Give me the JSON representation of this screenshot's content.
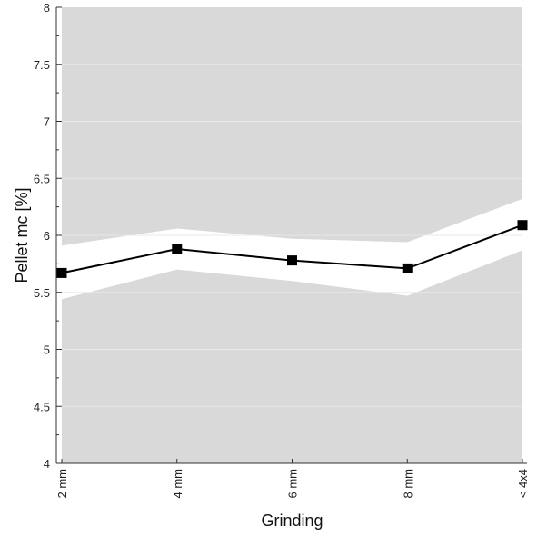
{
  "chart_data": {
    "type": "line",
    "title": "",
    "xlabel": "Grinding",
    "ylabel": "Pellet mc [%]",
    "categories": [
      "2 mm",
      "4 mm",
      "6 mm",
      "8 mm",
      "< 4x4"
    ],
    "series": [
      {
        "values": [
          5.67,
          5.88,
          5.78,
          5.71,
          6.09
        ],
        "lower": [
          5.44,
          5.7,
          5.6,
          5.47,
          5.87
        ],
        "upper": [
          5.91,
          6.06,
          5.97,
          5.94,
          6.32
        ],
        "marker": "square",
        "color": "#000000"
      }
    ],
    "ylim": [
      4,
      8
    ],
    "yticks": [
      4,
      4.5,
      5,
      5.5,
      6,
      6.5,
      7,
      7.5,
      8
    ],
    "ytick_labels": [
      "4",
      "4.5",
      "5",
      "5.5",
      "6",
      "6.5",
      "7",
      "7.5",
      "8"
    ],
    "grid": true,
    "legend": "none",
    "colors": {
      "outside_band": "#d9d9d9",
      "band": "#ffffff",
      "grid": "#e8e8e8",
      "line": "#000000"
    }
  }
}
